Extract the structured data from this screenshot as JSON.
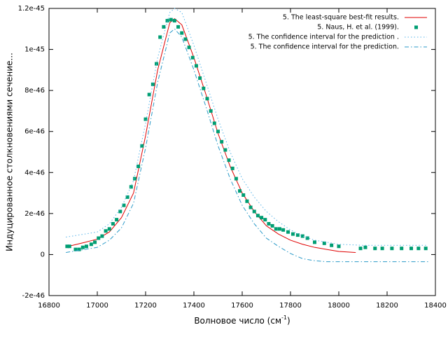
{
  "chart_data": {
    "type": "line",
    "xlabel": [
      "Волновое число (см",
      "-1",
      ")"
    ],
    "ylabel": "Индуцированное столкновениями сечение...",
    "xlim": [
      16800,
      18400
    ],
    "xticks": [
      16800,
      17000,
      17200,
      17400,
      17600,
      17800,
      18000,
      18200,
      18400
    ],
    "ylim": [
      -2e-46,
      1.2e-45
    ],
    "yticks": [
      -2e-46,
      0,
      2e-46,
      4e-46,
      6e-46,
      8e-46,
      1e-45,
      1.2e-45
    ],
    "legend": "top-right",
    "series": [
      {
        "name": "5.  The least-square best-fit results.",
        "color": "#e00000",
        "style": "solid",
        "x": [
          16880,
          16950,
          17000,
          17050,
          17100,
          17150,
          17200,
          17250,
          17300,
          17320,
          17350,
          17400,
          17450,
          17500,
          17550,
          17600,
          17650,
          17700,
          17750,
          17800,
          17850,
          17900,
          17950,
          18000,
          18070
        ],
        "values": [
          4e-47,
          6e-47,
          7.5e-47,
          1.1e-46,
          1.8e-46,
          3e-46,
          5.8e-46,
          9e-46,
          1.13e-45,
          1.15e-45,
          1.12e-45,
          9.6e-46,
          7.8e-46,
          5.9e-46,
          4.3e-46,
          3e-46,
          2.1e-46,
          1.4e-46,
          1e-46,
          7e-47,
          5e-47,
          3.5e-47,
          2.5e-47,
          1.5e-47,
          1e-47
        ]
      },
      {
        "name": "5. Naus, H. et al. (1999).",
        "color": "#009e73",
        "style": "points",
        "x": [
          16875,
          16885,
          16910,
          16925,
          16940,
          16955,
          16975,
          16990,
          17005,
          17020,
          17035,
          17050,
          17065,
          17080,
          17095,
          17110,
          17125,
          17140,
          17155,
          17170,
          17185,
          17200,
          17215,
          17230,
          17245,
          17260,
          17275,
          17290,
          17305,
          17320,
          17335,
          17350,
          17365,
          17380,
          17395,
          17410,
          17425,
          17440,
          17455,
          17470,
          17485,
          17500,
          17515,
          17530,
          17545,
          17560,
          17575,
          17590,
          17605,
          17620,
          17635,
          17650,
          17665,
          17680,
          17695,
          17710,
          17725,
          17740,
          17755,
          17770,
          17790,
          17810,
          17830,
          17850,
          17870,
          17900,
          17940,
          17970,
          18000,
          18090,
          18110,
          18150,
          18180,
          18220,
          18260,
          18300,
          18330,
          18360
        ],
        "values": [
          4e-47,
          4e-47,
          2.5e-47,
          2.5e-47,
          3.5e-47,
          4e-47,
          5e-47,
          6e-47,
          8e-47,
          9e-47,
          1.15e-46,
          1.25e-46,
          1.5e-46,
          1.7e-46,
          2.1e-46,
          2.4e-46,
          2.8e-46,
          3.3e-46,
          3.7e-46,
          4.3e-46,
          5.3e-46,
          6.6e-46,
          7.8e-46,
          8.3e-46,
          9.3e-46,
          1.06e-45,
          1.11e-45,
          1.14e-45,
          1.145e-45,
          1.14e-45,
          1.11e-45,
          1.08e-45,
          1.05e-45,
          1.01e-45,
          9.6e-46,
          9.2e-46,
          8.6e-46,
          8.1e-46,
          7.6e-46,
          7e-46,
          6.4e-46,
          6e-46,
          5.5e-46,
          5.1e-46,
          4.6e-46,
          4.2e-46,
          3.7e-46,
          3.1e-46,
          2.9e-46,
          2.6e-46,
          2.3e-46,
          2.1e-46,
          1.9e-46,
          1.8e-46,
          1.7e-46,
          1.5e-46,
          1.4e-46,
          1.25e-46,
          1.25e-46,
          1.2e-46,
          1.1e-46,
          1e-46,
          9.5e-47,
          9e-47,
          8e-47,
          6e-47,
          5.5e-47,
          4.5e-47,
          4e-47,
          3e-47,
          3.5e-47,
          3e-47,
          3e-47,
          3e-47,
          3e-47,
          3e-47,
          3e-47,
          3e-47
        ]
      },
      {
        "name": "5. The confidence interval for the prediction .",
        "color": "#56b4e9",
        "style": "dotted",
        "x": [
          16870,
          17000,
          17050,
          17100,
          17150,
          17200,
          17250,
          17300,
          17320,
          17350,
          17400,
          17450,
          17500,
          17550,
          17600,
          17650,
          17700,
          17750,
          17800,
          17850,
          17900,
          17950,
          18000,
          18100,
          18200,
          18370
        ],
        "values": [
          8.5e-47,
          1.1e-46,
          1.5e-46,
          2.3e-46,
          3.6e-46,
          6.4e-46,
          9.6e-46,
          1.18e-45,
          1.2e-45,
          1.18e-45,
          1.02e-45,
          8.4e-46,
          6.6e-46,
          5e-46,
          3.7e-46,
          2.8e-46,
          2.1e-46,
          1.6e-46,
          1.2e-46,
          9e-47,
          7e-47,
          6e-47,
          5e-47,
          4.5e-47,
          4.5e-47,
          4.5e-47
        ]
      },
      {
        "name": "5. The confidence interval for the prediction.",
        "color": "#2a9ac8",
        "style": "dashdot",
        "x": [
          16870,
          17000,
          17050,
          17100,
          17150,
          17200,
          17250,
          17300,
          17320,
          17350,
          17400,
          17450,
          17500,
          17550,
          17600,
          17650,
          17700,
          17750,
          17800,
          17850,
          17900,
          17950,
          18000,
          18100,
          18200,
          18370
        ],
        "values": [
          1e-47,
          3.5e-47,
          7e-47,
          1.3e-46,
          2.5e-46,
          5.2e-46,
          8.4e-46,
          1.08e-45,
          1.1e-45,
          1.06e-45,
          9e-46,
          7.2e-46,
          5.3e-46,
          3.7e-46,
          2.4e-46,
          1.5e-46,
          8e-47,
          4e-47,
          5e-48,
          -2e-47,
          -3e-47,
          -3.5e-47,
          -3.5e-47,
          -3.5e-47,
          -3.5e-47,
          -3.5e-47
        ]
      }
    ]
  }
}
